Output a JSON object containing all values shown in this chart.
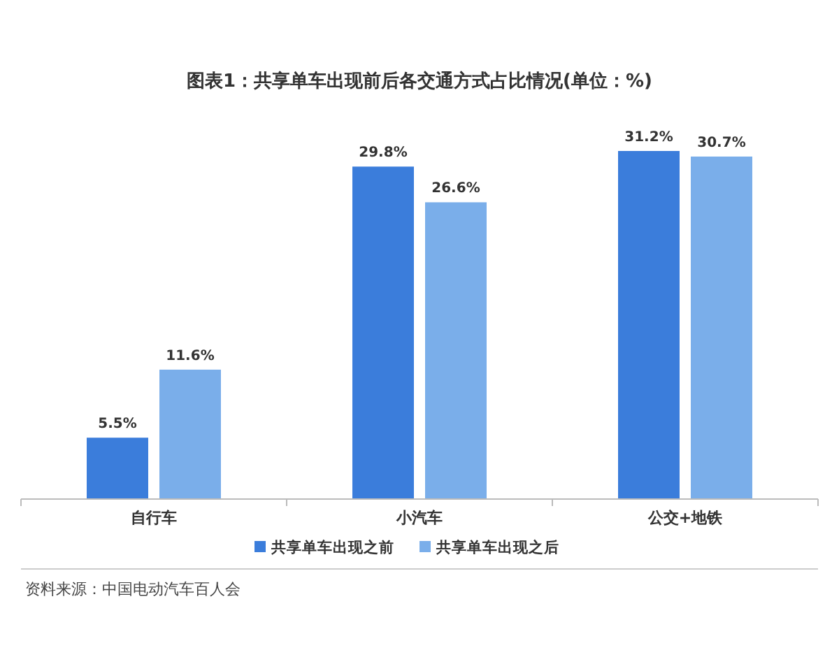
{
  "chart_data": {
    "type": "bar",
    "title": "图表1：共享单车出现前后各交通方式占比情况(单位：%)",
    "categories": [
      "自行车",
      "小汽车",
      "公交+地铁"
    ],
    "series": [
      {
        "name": "共享单车出现之前",
        "color": "#3b7ddb",
        "values": [
          5.5,
          29.8,
          31.2
        ],
        "value_labels": [
          "5.5%",
          "29.8%",
          "31.2%"
        ]
      },
      {
        "name": "共享单车出现之后",
        "color": "#7aaeea",
        "values": [
          11.6,
          26.6,
          30.7
        ],
        "value_labels": [
          "11.6%",
          "26.6%",
          "30.7%"
        ]
      }
    ],
    "legend": "bottom",
    "annotations": [
      "资料来源：中国电动汽车百人会"
    ]
  }
}
